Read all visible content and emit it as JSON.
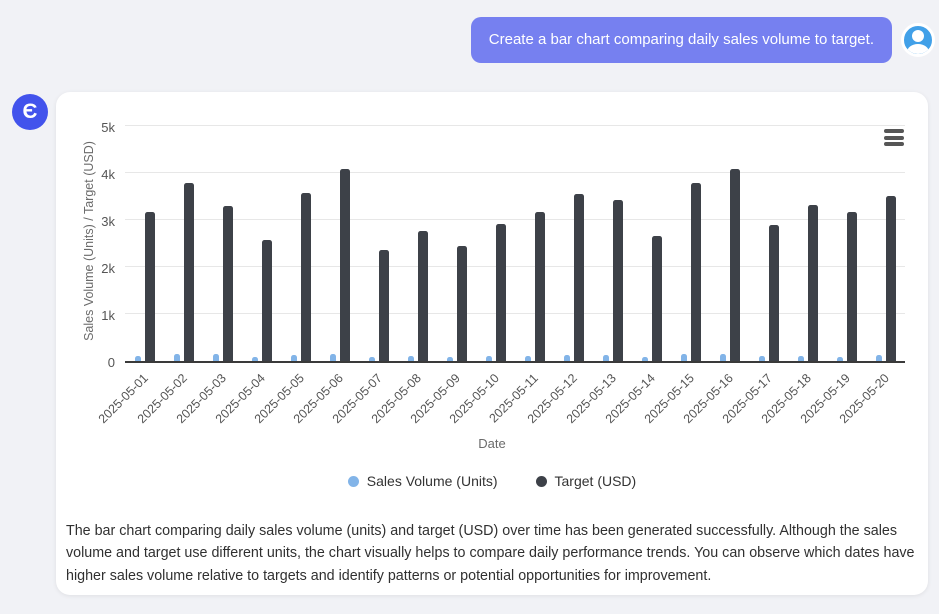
{
  "chat": {
    "user_message": "Create a bar chart comparing daily sales volume to target.",
    "assistant_avatar_glyph": "Є"
  },
  "chart_data": {
    "type": "bar",
    "categories": [
      "2025-05-01",
      "2025-05-02",
      "2025-05-03",
      "2025-05-04",
      "2025-05-05",
      "2025-05-06",
      "2025-05-07",
      "2025-05-08",
      "2025-05-09",
      "2025-05-10",
      "2025-05-11",
      "2025-05-12",
      "2025-05-13",
      "2025-05-14",
      "2025-05-15",
      "2025-05-16",
      "2025-05-17",
      "2025-05-18",
      "2025-05-19",
      "2025-05-20"
    ],
    "series": [
      {
        "name": "Sales Volume (Units)",
        "color": "#82b4e8",
        "values": [
          110,
          160,
          140,
          80,
          120,
          160,
          80,
          100,
          80,
          100,
          110,
          130,
          120,
          80,
          150,
          140,
          100,
          110,
          90,
          130
        ]
      },
      {
        "name": "Target (USD)",
        "color": "#3d4148",
        "values": [
          3180,
          3790,
          3300,
          2580,
          3570,
          4080,
          2370,
          2770,
          2450,
          2920,
          3170,
          3560,
          3430,
          2670,
          3780,
          4080,
          2890,
          3330,
          3170,
          3520
        ]
      }
    ],
    "xlabel": "Date",
    "ylabel": "Sales Volume (Units) / Target (USD)",
    "ylim": [
      0,
      5000
    ],
    "ytick_labels": [
      "0",
      "1k",
      "2k",
      "3k",
      "4k",
      "5k"
    ],
    "grid": true,
    "legend_position": "bottom"
  },
  "summary_text": "The bar chart comparing daily sales volume (units) and target (USD) over time has been generated successfully. Although the sales volume and target use different units, the chart visually helps to compare daily performance trends. You can observe which dates have higher sales volume relative to targets and identify patterns or potential opportunities for improvement."
}
